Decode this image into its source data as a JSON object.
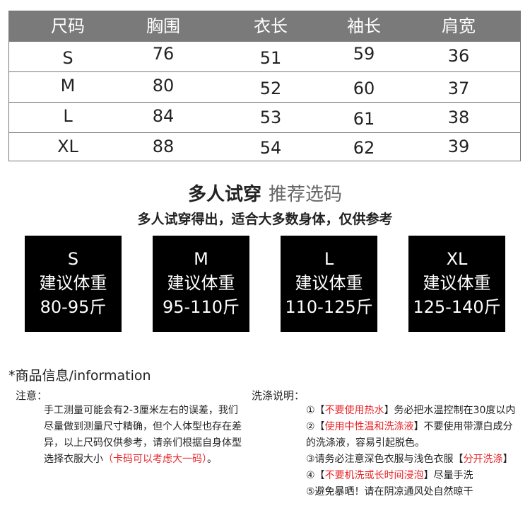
{
  "size_table": {
    "headers": [
      "尺码",
      "胸围",
      "衣长",
      "袖长",
      "肩宽"
    ],
    "rows": [
      [
        "S",
        "76",
        "51",
        "59",
        "36"
      ],
      [
        "M",
        "80",
        "52",
        "60",
        "37"
      ],
      [
        "L",
        "84",
        "53",
        "61",
        "38"
      ],
      [
        "XL",
        "88",
        "54",
        "62",
        "39"
      ]
    ]
  },
  "recommend": {
    "title": "多人试穿",
    "title_sub": "推荐选码",
    "subtitle": "多人试穿得出，适合大多数身体，仅供参考",
    "label": "建议体重",
    "boxes": [
      {
        "size": "S",
        "range": "80-95斤"
      },
      {
        "size": "M",
        "range": "95-110斤"
      },
      {
        "size": "L",
        "range": "110-125斤"
      },
      {
        "size": "XL",
        "range": "125-140斤"
      }
    ]
  },
  "info": {
    "heading": "*商品信息/information",
    "notice_title": "注意：",
    "notice_lines": [
      "手工测量可能会有2-3厘米左右的误差，我们",
      "尽量做到测量尺寸精确，但个人体型也存在差",
      "异，以上尺码仅供参考，请亲们根据自身体型"
    ],
    "notice_last": "选择衣服大小",
    "notice_red": "（卡码可以考虑大一码）",
    "notice_end": "。",
    "wash_title": "洗涤说明：",
    "wash": [
      {
        "pre": "①【",
        "red": "不要使用热水",
        "post": "】务必把水温控制在30度以内"
      },
      {
        "pre": "②【",
        "red": "使用中性温和洗涤液",
        "post": "】不要使用带漂白成分"
      },
      {
        "pre": "的洗涤液，容易引起脱色。",
        "red": "",
        "post": ""
      },
      {
        "pre": "③请务必注意深色衣服与浅色衣服【",
        "red": "分开洗涤",
        "post": "】"
      },
      {
        "pre": "④【",
        "red": "不要机洗或长时间浸泡",
        "post": "】尽量手洗"
      },
      {
        "pre": "⑤避免暴晒！请在阴凉通风处自然晾干",
        "red": "",
        "post": ""
      }
    ]
  },
  "colors": {
    "header_bg": "#7a7a7a",
    "box_bg": "#000000",
    "accent_red": "#e8262a"
  }
}
